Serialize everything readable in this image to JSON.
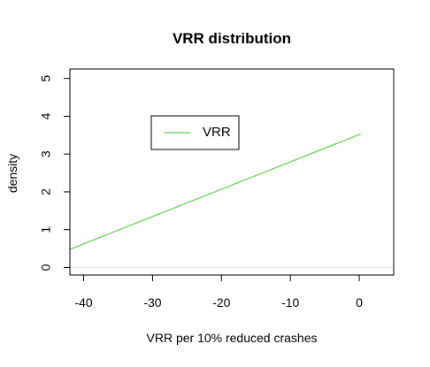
{
  "chart_data": {
    "type": "line",
    "title": "VRR distribution",
    "xlabel": "VRR per 10% reduced crashes",
    "ylabel": "density",
    "xlim": [
      -42,
      5
    ],
    "ylim": [
      -0.2,
      5.25
    ],
    "x_ticks": [
      -40,
      -30,
      -20,
      -10,
      0
    ],
    "y_ticks": [
      0,
      1,
      2,
      3,
      4,
      5
    ],
    "x_tick_labels": [
      "-40",
      "-30",
      "-20",
      "-10",
      "0"
    ],
    "y_tick_labels": [
      "0",
      "1",
      "2",
      "3",
      "4",
      "5"
    ],
    "series": [
      {
        "name": "VRR",
        "color": "#61d04f",
        "x": [
          -42,
          0.2
        ],
        "y": [
          0.48,
          3.53
        ]
      }
    ],
    "baseline": {
      "y": 0,
      "color": "#e6e6e6"
    },
    "legend": {
      "position": "upper-center",
      "entries": [
        "VRR"
      ]
    },
    "grid": false
  }
}
